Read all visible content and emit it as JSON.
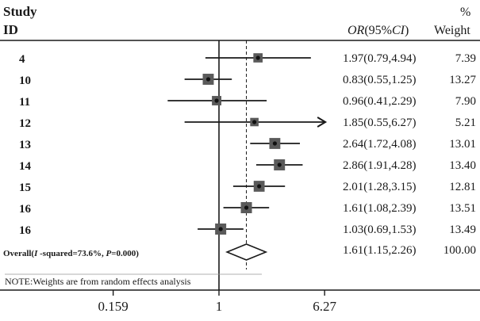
{
  "header": {
    "study_line1": "Study",
    "study_line2": "ID",
    "or_prefix": "OR",
    "or_open": "(95%",
    "or_ci": "CI",
    "or_close": ")",
    "weight_line1": "%",
    "weight_line2": "Weight"
  },
  "chart_data": {
    "type": "forest",
    "scale": "log",
    "null_value": 1,
    "overall_reference": 1.61,
    "x_ticks": [
      {
        "value": 0.159,
        "label": "0.159"
      },
      {
        "value": 1,
        "label": "1"
      },
      {
        "value": 6.27,
        "label": "6.27"
      }
    ],
    "studies": [
      {
        "id": "4",
        "or": 1.97,
        "lo": 0.79,
        "hi": 4.94,
        "label": "1.97(0.79,4.94)",
        "weight": "7.39",
        "w": 7.39
      },
      {
        "id": "10",
        "or": 0.83,
        "lo": 0.55,
        "hi": 1.25,
        "label": "0.83(0.55,1.25)",
        "weight": "13.27",
        "w": 13.27
      },
      {
        "id": "11",
        "or": 0.96,
        "lo": 0.41,
        "hi": 2.29,
        "label": "0.96(0.41,2.29)",
        "weight": "7.90",
        "w": 7.9
      },
      {
        "id": "12",
        "or": 1.85,
        "lo": 0.55,
        "hi": 6.27,
        "label": "1.85(0.55,6.27)",
        "weight": "5.21",
        "w": 5.21,
        "arrow": true
      },
      {
        "id": "13",
        "or": 2.64,
        "lo": 1.72,
        "hi": 4.08,
        "label": "2.64(1.72,4.08)",
        "weight": "13.01",
        "w": 13.01
      },
      {
        "id": "14",
        "or": 2.86,
        "lo": 1.91,
        "hi": 4.28,
        "label": "2.86(1.91,4.28)",
        "weight": "13.40",
        "w": 13.4
      },
      {
        "id": "15",
        "or": 2.01,
        "lo": 1.28,
        "hi": 3.15,
        "label": "2.01(1.28,3.15)",
        "weight": "12.81",
        "w": 12.81
      },
      {
        "id": "16",
        "or": 1.61,
        "lo": 1.08,
        "hi": 2.39,
        "label": "1.61(1.08,2.39)",
        "weight": "13.51",
        "w": 13.51
      },
      {
        "id": "16",
        "or": 1.03,
        "lo": 0.69,
        "hi": 1.53,
        "label": "1.03(0.69,1.53)",
        "weight": "13.49",
        "w": 13.49
      }
    ],
    "overall": {
      "text_pre": "Overall(",
      "text_i": "I",
      "text_mid": " -squared=73.6%, ",
      "text_p": "P",
      "text_post": "=0.000)",
      "or": 1.61,
      "lo": 1.15,
      "hi": 2.26,
      "label": "1.61(1.15,2.26)",
      "weight": "100.00"
    }
  },
  "note": "NOTE:Weights are from random effects analysis"
}
